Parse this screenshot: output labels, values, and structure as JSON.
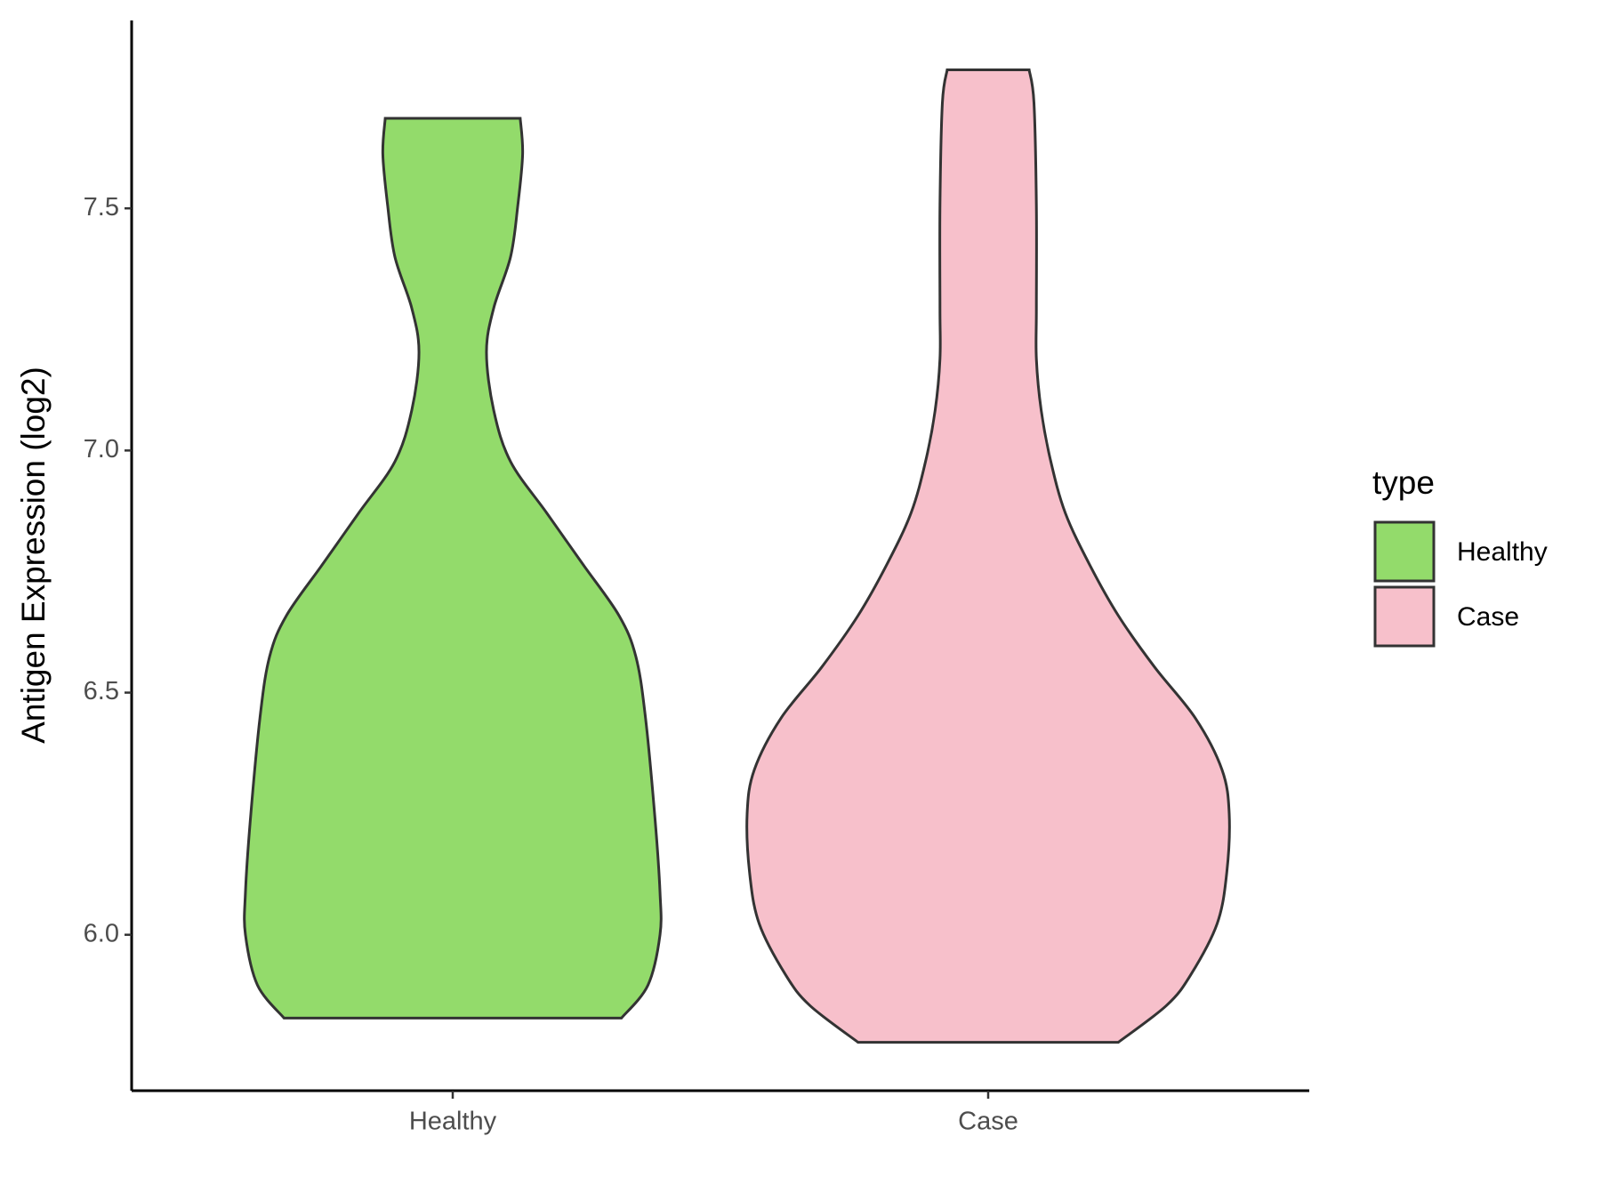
{
  "chart_data": {
    "type": "violin",
    "y_label": "Antigen Expression (log2)",
    "categories": [
      "Healthy",
      "Case"
    ],
    "legend_title": "type",
    "legend_position": "right",
    "ylim": [
      5.678,
      7.888
    ],
    "yticks": [
      {
        "value": 6,
        "label": "6.0"
      },
      6.5,
      {
        "value": 7,
        "label": "7.0"
      },
      7.5
    ],
    "series": [
      {
        "name": "Healthy",
        "color": "#93db6b",
        "y": [
          5.828,
          5.896,
          6.0,
          6.087,
          6.235,
          6.447,
          6.574,
          6.659,
          6.765,
          6.871,
          6.977,
          7.083,
          7.203,
          7.294,
          7.4,
          7.506,
          7.612,
          7.686
        ],
        "width": [
          0.7,
          0.81,
          0.86,
          0.86,
          0.84,
          0.8,
          0.76,
          0.69,
          0.54,
          0.39,
          0.24,
          0.17,
          0.14,
          0.17,
          0.24,
          0.27,
          0.29,
          0.28
        ]
      },
      {
        "name": "Case",
        "color": "#f7c0cb",
        "y": [
          5.778,
          5.854,
          5.917,
          6.023,
          6.129,
          6.25,
          6.341,
          6.447,
          6.553,
          6.659,
          6.765,
          6.871,
          6.977,
          7.083,
          7.189,
          7.294,
          7.506,
          7.718,
          7.786
        ],
        "width": [
          0.54,
          0.74,
          0.84,
          0.95,
          0.99,
          1.0,
          0.97,
          0.86,
          0.69,
          0.54,
          0.42,
          0.32,
          0.26,
          0.22,
          0.2,
          0.2,
          0.2,
          0.19,
          0.17
        ]
      }
    ]
  }
}
